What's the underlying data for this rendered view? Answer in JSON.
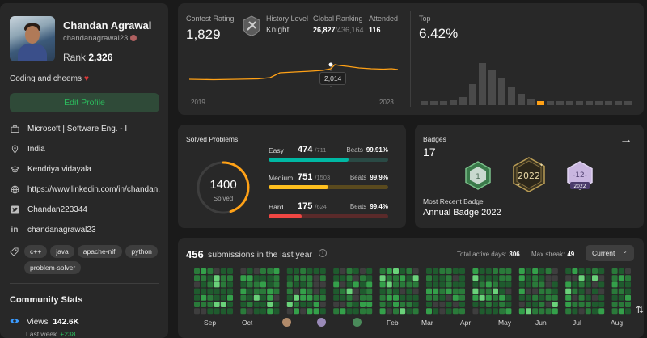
{
  "profile": {
    "name": "Chandan Agrawal",
    "username": "chandanagrawal23",
    "rank_label": "Rank",
    "rank_value": "2,326",
    "bio": "Coding and cheems",
    "edit_label": "Edit Profile",
    "info": [
      {
        "icon": "briefcase-icon",
        "text": "Microsoft | Software Eng. - I"
      },
      {
        "icon": "location-pin-icon",
        "text": "India"
      },
      {
        "icon": "graduation-cap-icon",
        "text": "Kendriya vidayala"
      },
      {
        "icon": "globe-icon",
        "text": "https://www.linkedin.com/in/chandan..."
      },
      {
        "icon": "twitter-icon",
        "text": "Chandan223344"
      },
      {
        "icon": "linkedin-icon",
        "text": "chandanagrawal23"
      }
    ],
    "tags": [
      "c++",
      "java",
      "apache-nifi",
      "python",
      "problem-solver"
    ],
    "community_title": "Community Stats",
    "views_label": "Views",
    "views_value": "142.6K",
    "last_week_label": "Last week",
    "last_week_value": "+238"
  },
  "contest": {
    "rating_label": "Contest Rating",
    "rating_value": "1,829",
    "history_label": "History Level",
    "history_value": "Knight",
    "global_label": "Global Ranking",
    "global_value": "26,827",
    "global_total": "/436,164",
    "attended_label": "Attended",
    "attended_value": "116",
    "tooltip": "2,014",
    "year_start": "2019",
    "year_end": "2023",
    "top_label": "Top",
    "top_value": "6.42%"
  },
  "solved": {
    "label": "Solved Problems",
    "total": "1400",
    "total_label": "Solved",
    "difficulties": [
      {
        "label": "Easy",
        "count": "474",
        "total": "/711",
        "beats_label": "Beats",
        "beats": "99.91%",
        "color": "#00b8a3",
        "track": "#2a4a45"
      },
      {
        "label": "Medium",
        "count": "751",
        "total": "/1503",
        "beats_label": "Beats",
        "beats": "99.9%",
        "color": "#ffc01e",
        "track": "#5a4a1e"
      },
      {
        "label": "Hard",
        "count": "175",
        "total": "/624",
        "beats_label": "Beats",
        "beats": "99.4%",
        "color": "#ef4743",
        "track": "#5a2a2a"
      }
    ]
  },
  "badges": {
    "label": "Badges",
    "count": "17",
    "recent_label": "Most Recent Badge",
    "recent_value": "Annual Badge 2022",
    "badge2_text": "2022",
    "badge3_top": "-12-",
    "badge3_bottom": "2022"
  },
  "submissions": {
    "count": "456",
    "text": "submissions in the last year",
    "active_label": "Total active days:",
    "active_value": "306",
    "streak_label": "Max streak:",
    "streak_value": "49",
    "select_value": "Current",
    "months": [
      "Sep",
      "Oct",
      "Feb",
      "Mar",
      "Apr",
      "May",
      "Jun",
      "Jul",
      "Aug"
    ]
  },
  "colors": {
    "accent_green": "#2cbb5d",
    "orange": "#ffa116",
    "heat_empty": "#3e3e3e"
  }
}
